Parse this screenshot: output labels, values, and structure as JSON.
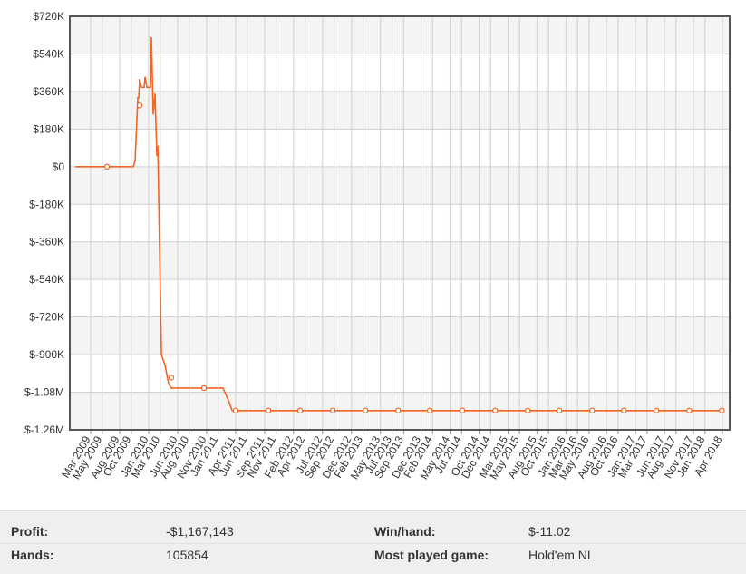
{
  "chart_data": {
    "type": "line",
    "ylim": [
      -1260000,
      720000
    ],
    "yticks": [
      {
        "value": 720000,
        "label": "$720K"
      },
      {
        "value": 540000,
        "label": "$540K"
      },
      {
        "value": 360000,
        "label": "$360K"
      },
      {
        "value": 180000,
        "label": "$180K"
      },
      {
        "value": 0,
        "label": "$0"
      },
      {
        "value": -180000,
        "label": "$-180K"
      },
      {
        "value": -360000,
        "label": "$-360K"
      },
      {
        "value": -540000,
        "label": "$-540K"
      },
      {
        "value": -720000,
        "label": "$-720K"
      },
      {
        "value": -900000,
        "label": "$-900K"
      },
      {
        "value": -1080000,
        "label": "$-1.08M"
      },
      {
        "value": -1260000,
        "label": "$-1.26M"
      }
    ],
    "xlim": [
      2008.867,
      2018.354
    ],
    "xticks": [
      {
        "value": 2009.167,
        "label": "Mar 2009"
      },
      {
        "value": 2009.333,
        "label": "May 2009"
      },
      {
        "value": 2009.583,
        "label": "Aug 2009"
      },
      {
        "value": 2009.75,
        "label": "Oct 2009"
      },
      {
        "value": 2010.0,
        "label": "Jan 2010"
      },
      {
        "value": 2010.167,
        "label": "Mar 2010"
      },
      {
        "value": 2010.417,
        "label": "Jun 2010"
      },
      {
        "value": 2010.583,
        "label": "Aug 2010"
      },
      {
        "value": 2010.833,
        "label": "Nov 2010"
      },
      {
        "value": 2011.0,
        "label": "Jan 2011"
      },
      {
        "value": 2011.25,
        "label": "Apr 2011"
      },
      {
        "value": 2011.417,
        "label": "Jun 2011"
      },
      {
        "value": 2011.667,
        "label": "Sep 2011"
      },
      {
        "value": 2011.833,
        "label": "Nov 2011"
      },
      {
        "value": 2012.083,
        "label": "Feb 2012"
      },
      {
        "value": 2012.25,
        "label": "Apr 2012"
      },
      {
        "value": 2012.5,
        "label": "Jul 2012"
      },
      {
        "value": 2012.667,
        "label": "Sep 2012"
      },
      {
        "value": 2012.917,
        "label": "Dec 2012"
      },
      {
        "value": 2013.083,
        "label": "Feb 2013"
      },
      {
        "value": 2013.333,
        "label": "May 2013"
      },
      {
        "value": 2013.5,
        "label": "Jul 2013"
      },
      {
        "value": 2013.667,
        "label": "Sep 2013"
      },
      {
        "value": 2013.917,
        "label": "Dec 2013"
      },
      {
        "value": 2014.083,
        "label": "Feb 2014"
      },
      {
        "value": 2014.333,
        "label": "May 2014"
      },
      {
        "value": 2014.5,
        "label": "Jul 2014"
      },
      {
        "value": 2014.75,
        "label": "Oct 2014"
      },
      {
        "value": 2014.917,
        "label": "Dec 2014"
      },
      {
        "value": 2015.167,
        "label": "Mar 2015"
      },
      {
        "value": 2015.333,
        "label": "May 2015"
      },
      {
        "value": 2015.583,
        "label": "Aug 2015"
      },
      {
        "value": 2015.75,
        "label": "Oct 2015"
      },
      {
        "value": 2016.0,
        "label": "Jan 2016"
      },
      {
        "value": 2016.167,
        "label": "Mar 2016"
      },
      {
        "value": 2016.333,
        "label": "May 2016"
      },
      {
        "value": 2016.583,
        "label": "Aug 2016"
      },
      {
        "value": 2016.75,
        "label": "Oct 2016"
      },
      {
        "value": 2017.0,
        "label": "Jan 2017"
      },
      {
        "value": 2017.167,
        "label": "Mar 2017"
      },
      {
        "value": 2017.417,
        "label": "Jun 2017"
      },
      {
        "value": 2017.583,
        "label": "Aug 2017"
      },
      {
        "value": 2017.833,
        "label": "Nov 2017"
      },
      {
        "value": 2018.0,
        "label": "Jan 2018"
      },
      {
        "value": 2018.25,
        "label": "Apr 2018"
      }
    ],
    "grid": true,
    "color": "#f26522",
    "line": {
      "x": [
        2008.945,
        2009.78,
        2009.806,
        2009.845,
        2009.858,
        2009.871,
        2009.897,
        2009.936,
        2009.949,
        2009.975,
        2010.027,
        2010.04,
        2010.066,
        2010.092,
        2010.119,
        2010.132,
        2010.184,
        2010.236,
        2010.288,
        2010.327,
        2011.07,
        2011.096,
        2011.149,
        2011.201,
        2018.254
      ],
      "values": [
        0,
        0,
        30000,
        330000,
        330000,
        420000,
        380000,
        380000,
        430000,
        380000,
        380000,
        620000,
        250000,
        350000,
        50000,
        100000,
        -900000,
        -950000,
        -1040000,
        -1060000,
        -1060000,
        -1080000,
        -1120000,
        -1168000,
        -1168000
      ]
    },
    "markers": {
      "x": [
        2009.402,
        2009.871,
        2010.327,
        2010.796,
        2011.253,
        2011.722,
        2012.178,
        2012.648,
        2013.117,
        2013.587,
        2014.043,
        2014.512,
        2014.982,
        2015.451,
        2015.907,
        2016.377,
        2016.833,
        2017.302,
        2017.772,
        2018.241
      ],
      "values": [
        0,
        293000,
        -1010000,
        -1060000,
        -1168000,
        -1168000,
        -1168000,
        -1168000,
        -1168000,
        -1168000,
        -1168000,
        -1168000,
        -1168000,
        -1168000,
        -1168000,
        -1168000,
        -1168000,
        -1168000,
        -1168000,
        -1168000
      ]
    }
  },
  "stats": {
    "rows": [
      [
        "Profit:",
        "-$1,167,143",
        "Win/hand:",
        "$-11.02"
      ],
      [
        "Hands:",
        "105854",
        "Most played game:",
        "Hold'em NL"
      ]
    ]
  }
}
